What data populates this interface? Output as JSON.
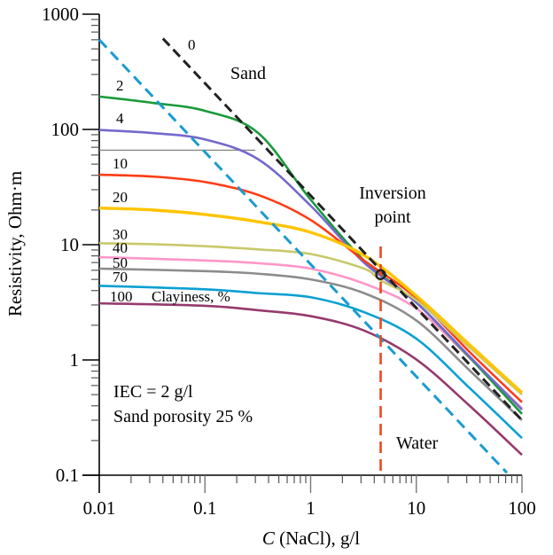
{
  "chart_data": {
    "type": "line",
    "title": "",
    "xlabel": "C (NaCl), g/l",
    "xlabel_italic_part": "C",
    "xlabel_rest": " (NaCl), g/l",
    "ylabel": "Resistivity, Ohm·m",
    "xscale": "log",
    "yscale": "log",
    "xlim": [
      0.01,
      100
    ],
    "ylim": [
      0.1,
      1000
    ],
    "grid": false,
    "x_ticks": [
      {
        "value": 0.01,
        "label": "0.01"
      },
      {
        "value": 0.1,
        "label": "0.1"
      },
      {
        "value": 1,
        "label": "1"
      },
      {
        "value": 10,
        "label": "10"
      },
      {
        "value": 100,
        "label": "100"
      }
    ],
    "y_ticks": [
      {
        "value": 0.1,
        "label": "0.1"
      },
      {
        "value": 1,
        "label": "1"
      },
      {
        "value": 10,
        "label": "10"
      },
      {
        "value": 100,
        "label": "100"
      },
      {
        "value": 1000,
        "label": "1000"
      }
    ],
    "series": [
      {
        "name": "Clayiness 0% (Sand)",
        "label": "0",
        "color": "#222222",
        "dash": true,
        "x": [
          0.04,
          100
        ],
        "y": [
          615,
          0.3
        ]
      },
      {
        "name": "Water",
        "label": "Water",
        "color": "#1a9bd0",
        "dash": true,
        "x": [
          0.01,
          72
        ],
        "y": [
          600,
          0.105
        ]
      },
      {
        "name": "Clayiness 2%",
        "label": "2",
        "color": "#1a9a3a",
        "x": [
          0.01,
          0.032,
          0.1,
          0.32,
          1,
          3.2,
          10,
          32,
          100
        ],
        "y": [
          193,
          170,
          145,
          93,
          24.6,
          7.3,
          3.15,
          1.05,
          0.34
        ]
      },
      {
        "name": "Clayiness 4%",
        "label": "4",
        "color": "#7468cc",
        "x": [
          0.01,
          0.032,
          0.1,
          0.32,
          1,
          3.2,
          10,
          32,
          100
        ],
        "y": [
          99,
          93,
          82,
          55,
          21.8,
          7.0,
          3.15,
          1.07,
          0.37
        ]
      },
      {
        "name": "Clayiness 10%",
        "label": "10",
        "color": "#ff3b14",
        "x": [
          0.01,
          0.032,
          0.1,
          0.32,
          1,
          3.2,
          10,
          32,
          100
        ],
        "y": [
          40.5,
          39,
          35,
          27,
          16.4,
          7.3,
          3.45,
          1.17,
          0.43
        ]
      },
      {
        "name": "Clayiness 20%",
        "label": "20",
        "color": "#ffc400",
        "x": [
          0.01,
          0.032,
          0.1,
          0.32,
          1,
          3.2,
          10,
          32,
          100
        ],
        "y": [
          20.8,
          20,
          18.3,
          15.8,
          12.8,
          8.1,
          3.6,
          1.35,
          0.52
        ]
      },
      {
        "name": "Clayiness 30-40%",
        "label": "30\n40",
        "color": "#c9c86a",
        "x": [
          0.01,
          0.032,
          0.1,
          0.32,
          1,
          3.2,
          4.6,
          10,
          32,
          100
        ],
        "y": [
          10.3,
          10.1,
          9.7,
          9.1,
          8.3,
          6.2,
          4.9,
          3.3,
          1.28,
          0.5
        ]
      },
      {
        "name": "Clayiness 50%",
        "label": "50",
        "color": "#ff96c8",
        "x": [
          0.01,
          0.1,
          0.32,
          1,
          3.2,
          10,
          32,
          100
        ],
        "y": [
          7.8,
          7.3,
          6.9,
          6.2,
          4.6,
          2.8,
          1.04,
          0.38
        ]
      },
      {
        "name": "Clayiness 70%",
        "label": "70",
        "color": "#8c8c8c",
        "x": [
          0.01,
          0.1,
          0.32,
          1,
          3.2,
          10,
          32,
          100
        ],
        "y": [
          6.2,
          5.9,
          5.6,
          5.0,
          3.8,
          2.2,
          0.81,
          0.3
        ]
      },
      {
        "name": "Clayiness 100% (cyan)",
        "label": "100",
        "color": "#0aa0d2",
        "x": [
          0.01,
          0.1,
          0.32,
          1,
          3.2,
          10,
          32,
          100
        ],
        "y": [
          4.4,
          4.1,
          3.8,
          3.5,
          2.6,
          1.53,
          0.57,
          0.21
        ]
      },
      {
        "name": "Clayiness 100% (maroon)",
        "label": "",
        "color": "#963a6e",
        "x": [
          0.01,
          0.1,
          0.32,
          1,
          3.2,
          10,
          32,
          100
        ],
        "y": [
          3.1,
          2.95,
          2.7,
          2.4,
          1.8,
          1.01,
          0.4,
          0.15
        ]
      }
    ],
    "reference_line": {
      "name": "horizontal reference",
      "color": "#888888",
      "y": 66,
      "x_from": 0.01,
      "x_to": 0.3
    },
    "inversion_point": {
      "x": 4.6,
      "y": 5.5,
      "label": "Inversion point",
      "line_color": "#f0461e"
    },
    "annotations": {
      "sand": "Sand",
      "water": "Water",
      "inversion_line1": "Inversion",
      "inversion_line2": "point",
      "clayiness": "Clayiness, %",
      "iec": "IEC = 2 g/l",
      "porosity": "Sand porosity 25 %",
      "label_0": "0",
      "label_2": "2",
      "label_4": "4",
      "label_10": "10",
      "label_20": "20",
      "label_30": "30",
      "label_40": "40",
      "label_50": "50",
      "label_70": "70",
      "label_100": "100"
    }
  }
}
